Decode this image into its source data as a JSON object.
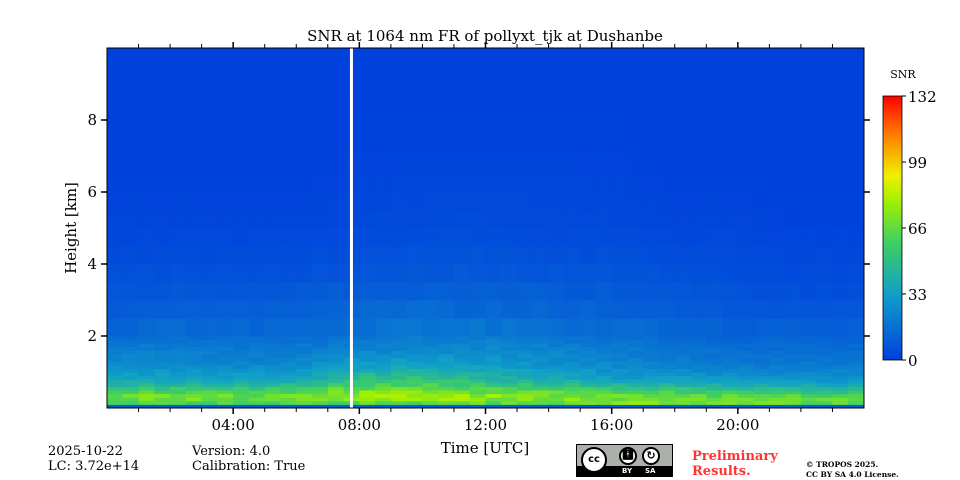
{
  "chart_data": {
    "type": "heatmap",
    "title": "SNR at 1064 nm FR of pollyxt_tjk at Dushanbe",
    "xlabel": "Time [UTC]",
    "ylabel": "Height [km]",
    "xlim_hours": [
      0,
      24
    ],
    "ylim_km": [
      0,
      10
    ],
    "xticks": [
      "04:00",
      "08:00",
      "12:00",
      "16:00",
      "20:00"
    ],
    "xtick_hours": [
      4,
      8,
      12,
      16,
      20
    ],
    "yticks": [
      "2",
      "4",
      "6",
      "8"
    ],
    "ytick_values": [
      2,
      4,
      6,
      8
    ],
    "colorbar": {
      "label": "SNR",
      "min": 0,
      "max": 132,
      "ticks": [
        "0",
        "33",
        "66",
        "99",
        "132"
      ],
      "colormap": [
        "#0040dd",
        "#10a0c8",
        "#40d060",
        "#a0f000",
        "#f0f000",
        "#ff8000",
        "#ff0000"
      ]
    },
    "data_gap_hour": 7.75,
    "grid_hours": [
      0,
      2,
      4,
      6,
      8,
      10,
      12,
      14,
      16,
      18,
      20,
      22,
      24
    ],
    "grid_heights_km": [
      0.05,
      0.15,
      0.3,
      0.5,
      0.8,
      1.2,
      1.6,
      2.0,
      3.0,
      4.0,
      5.0,
      7.0,
      10.0
    ],
    "snr_values": [
      [
        10,
        10,
        10,
        10,
        10,
        10,
        10,
        10,
        10,
        10,
        10,
        10,
        10
      ],
      [
        60,
        62,
        60,
        62,
        65,
        64,
        66,
        68,
        70,
        74,
        70,
        66,
        62
      ],
      [
        70,
        72,
        70,
        74,
        78,
        80,
        78,
        74,
        72,
        70,
        68,
        66,
        64
      ],
      [
        55,
        58,
        55,
        60,
        70,
        72,
        66,
        62,
        58,
        55,
        50,
        48,
        46
      ],
      [
        35,
        36,
        34,
        38,
        50,
        52,
        45,
        40,
        34,
        32,
        30,
        28,
        28
      ],
      [
        26,
        26,
        24,
        26,
        32,
        34,
        32,
        28,
        25,
        22,
        20,
        20,
        20
      ],
      [
        22,
        22,
        20,
        20,
        24,
        26,
        26,
        24,
        22,
        18,
        16,
        16,
        16
      ],
      [
        14,
        16,
        15,
        15,
        18,
        20,
        20,
        18,
        16,
        14,
        12,
        12,
        12
      ],
      [
        8,
        9,
        9,
        9,
        11,
        12,
        12,
        11,
        10,
        9,
        7,
        6,
        6
      ],
      [
        4,
        5,
        5,
        5,
        6,
        7,
        7,
        6,
        6,
        5,
        4,
        3,
        3
      ],
      [
        2,
        2,
        2,
        2,
        3,
        4,
        4,
        3,
        3,
        2,
        2,
        1,
        1
      ],
      [
        0,
        0,
        0,
        0,
        1,
        1,
        1,
        1,
        1,
        0,
        0,
        0,
        0
      ],
      [
        0,
        0,
        0,
        0,
        0,
        0,
        0,
        0,
        0,
        0,
        0,
        0,
        0
      ]
    ]
  },
  "footer": {
    "date": "2025-10-22",
    "lc": "LC: 3.72e+14",
    "version": "Version: 4.0",
    "calibration": "Calibration: True",
    "license_by": "BY",
    "license_sa": "SA",
    "preliminary": "Preliminary",
    "results": "Results.",
    "copyright": "© TROPOS 2025.",
    "license": "CC BY SA 4.0 License."
  }
}
